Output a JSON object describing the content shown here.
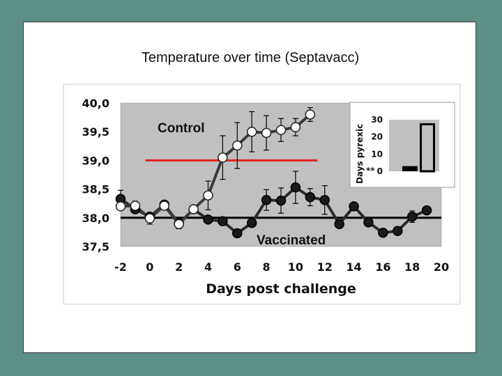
{
  "slide": {
    "title": "Temperature over time (Septavacc)"
  },
  "colors": {
    "background": "#5e8f87",
    "plot_area": "#c0c0c0",
    "threshold_line": "#e3211d",
    "baseline": "#000000",
    "control_marker": "#ffffff",
    "vaccinated_marker": "#1a1a1a"
  },
  "chart_data": [
    {
      "type": "line",
      "title": "",
      "xlabel": "Days post challenge",
      "ylabel": "",
      "xlim": [
        -2,
        20
      ],
      "ylim": [
        37.5,
        40.0
      ],
      "x_ticks": [
        "-2",
        "0",
        "2",
        "4",
        "6",
        "8",
        "10",
        "12",
        "14",
        "16",
        "18",
        "20"
      ],
      "y_ticks": [
        "37,5",
        "38,0",
        "38,5",
        "39,0",
        "39,5",
        "40,0"
      ],
      "grid": false,
      "reference_lines": [
        {
          "y": 39.0,
          "x_from": -0.3,
          "x_to": 11.5,
          "color": "#e3211d"
        },
        {
          "y": 38.0,
          "x_from": -2,
          "x_to": 20,
          "color": "#000000"
        }
      ],
      "series": [
        {
          "name": "Vaccinated",
          "x": [
            -2,
            -1,
            0,
            1,
            2,
            3,
            4,
            5,
            6,
            7,
            8,
            9,
            10,
            11,
            12,
            13,
            14,
            15,
            16,
            17,
            18,
            19
          ],
          "y": [
            38.33,
            38.15,
            38.02,
            38.23,
            37.9,
            38.15,
            37.97,
            37.94,
            37.73,
            37.91,
            38.31,
            38.3,
            38.53,
            38.36,
            38.31,
            37.89,
            38.2,
            37.92,
            37.74,
            37.77,
            38.02,
            38.13
          ],
          "error": [
            0.15,
            0.05,
            0.04,
            0.05,
            0.06,
            0.05,
            0.06,
            0.05,
            0.05,
            0.05,
            0.18,
            0.22,
            0.28,
            0.15,
            0.25,
            0.05,
            0.05,
            0.05,
            0.05,
            0.05,
            0.1,
            0.05
          ]
        },
        {
          "name": "Control",
          "x": [
            -2,
            -1,
            0,
            1,
            2,
            3,
            4,
            5,
            6,
            7,
            8,
            9,
            10,
            11
          ],
          "y": [
            38.2,
            38.21,
            37.99,
            38.21,
            37.89,
            38.15,
            38.39,
            39.05,
            39.26,
            39.5,
            39.48,
            39.53,
            39.58,
            39.8
          ],
          "error": [
            0.05,
            0.08,
            0.1,
            0.05,
            0.08,
            0.05,
            0.25,
            0.38,
            0.4,
            0.35,
            0.3,
            0.2,
            0.15,
            0.12
          ]
        }
      ]
    },
    {
      "type": "bar",
      "title": "",
      "xlabel": "",
      "ylabel": "Days pyrexic",
      "ylim": [
        0,
        30
      ],
      "y_ticks": [
        "0",
        "10",
        "20",
        "30"
      ],
      "annotation": "**",
      "series": [
        {
          "name": "Vaccinated",
          "values": [
            3
          ]
        },
        {
          "name": "Control",
          "values": [
            28
          ]
        }
      ]
    }
  ]
}
